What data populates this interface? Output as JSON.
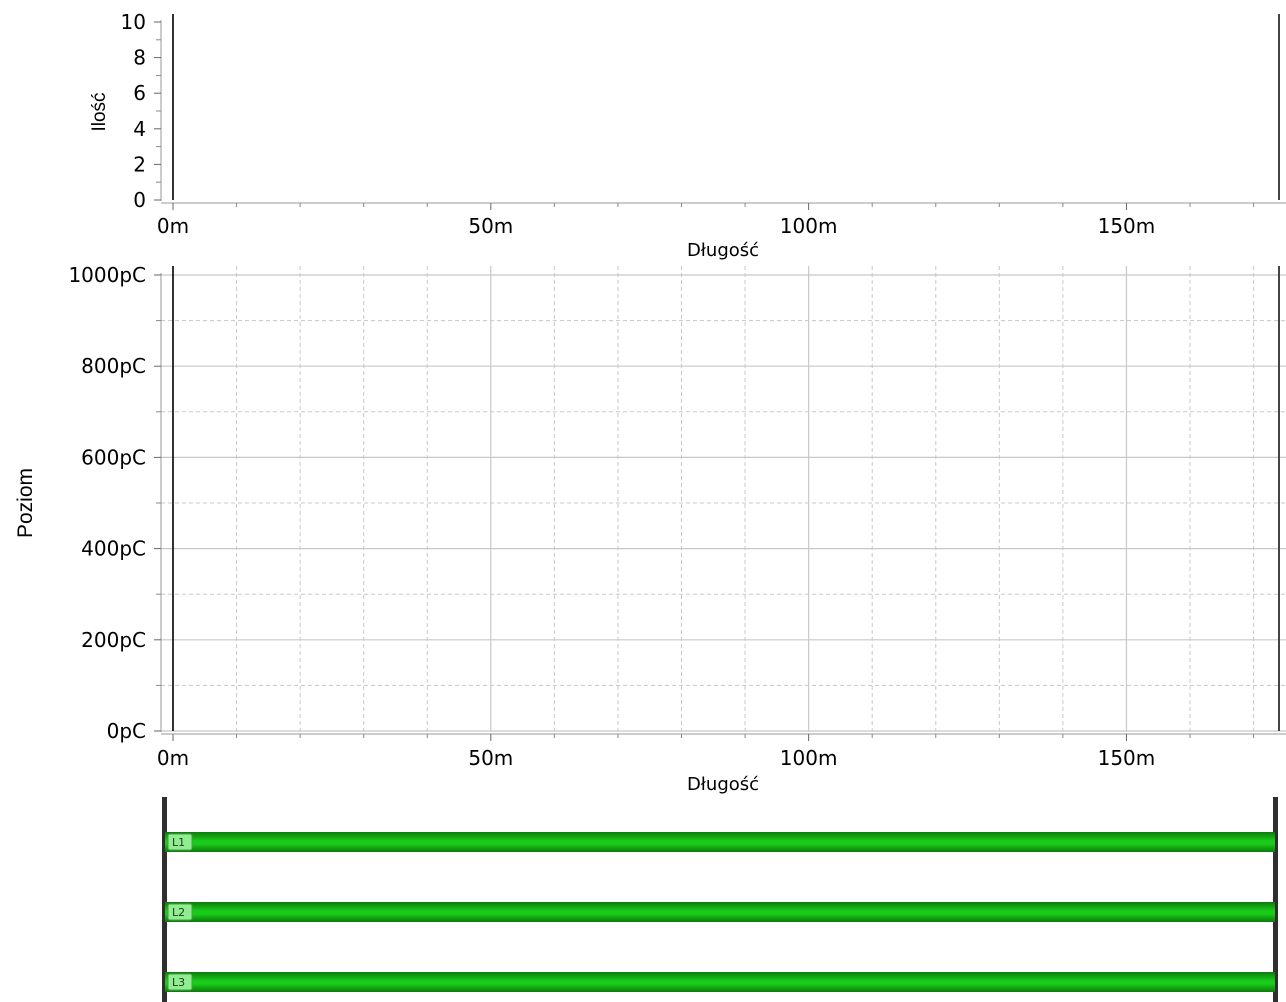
{
  "colors": {
    "axis": "#000000",
    "grid_major": "#c8c8c8",
    "grid_minor": "#c8c8c8",
    "cable_fill": "#19cc19",
    "cable_dark": "#0c7a0c",
    "cable_label_bg": "#90ee90",
    "marker": "#2f2f2f"
  },
  "chart_data": [
    {
      "type": "bar",
      "title": "",
      "xlabel": "Długość",
      "ylabel": "Ilość",
      "xlim": [
        0,
        174
      ],
      "ylim": [
        0,
        10
      ],
      "x_ticks": [
        {
          "value": 0,
          "label": "0m"
        },
        {
          "value": 50,
          "label": "50m"
        },
        {
          "value": 100,
          "label": "100m"
        },
        {
          "value": 150,
          "label": "150m"
        }
      ],
      "x_minor_ticks": [
        10,
        20,
        30,
        40,
        60,
        70,
        80,
        90,
        110,
        120,
        130,
        140,
        160,
        170
      ],
      "y_ticks": [
        {
          "value": 0,
          "label": "0"
        },
        {
          "value": 2,
          "label": "2"
        },
        {
          "value": 4,
          "label": "4"
        },
        {
          "value": 6,
          "label": "6"
        },
        {
          "value": 8,
          "label": "8"
        },
        {
          "value": 10,
          "label": "10"
        }
      ],
      "y_minor_ticks": [
        1,
        3,
        5,
        7,
        9
      ],
      "markers": [
        0,
        174
      ],
      "grid": false,
      "series": []
    },
    {
      "type": "line",
      "title": "",
      "xlabel": "Długość",
      "ylabel": "Poziom",
      "xlim": [
        0,
        174
      ],
      "ylim": [
        0,
        1000
      ],
      "x_ticks": [
        {
          "value": 0,
          "label": "0m"
        },
        {
          "value": 50,
          "label": "50m"
        },
        {
          "value": 100,
          "label": "100m"
        },
        {
          "value": 150,
          "label": "150m"
        }
      ],
      "x_minor_ticks": [
        10,
        20,
        30,
        40,
        60,
        70,
        80,
        90,
        110,
        120,
        130,
        140,
        160,
        170
      ],
      "y_ticks": [
        {
          "value": 0,
          "label": "0pC"
        },
        {
          "value": 200,
          "label": "200pC"
        },
        {
          "value": 400,
          "label": "400pC"
        },
        {
          "value": 600,
          "label": "600pC"
        },
        {
          "value": 800,
          "label": "800pC"
        },
        {
          "value": 1000,
          "label": "1000pC"
        }
      ],
      "y_minor_ticks": [
        100,
        300,
        500,
        700,
        900
      ],
      "markers": [
        0,
        174
      ],
      "grid": true,
      "series": []
    }
  ],
  "cable": {
    "xlim": [
      0,
      174
    ],
    "lines": [
      {
        "label": "L1",
        "start": 0,
        "end": 174
      },
      {
        "label": "L2",
        "start": 0,
        "end": 174
      },
      {
        "label": "L3",
        "start": 0,
        "end": 174
      }
    ]
  }
}
